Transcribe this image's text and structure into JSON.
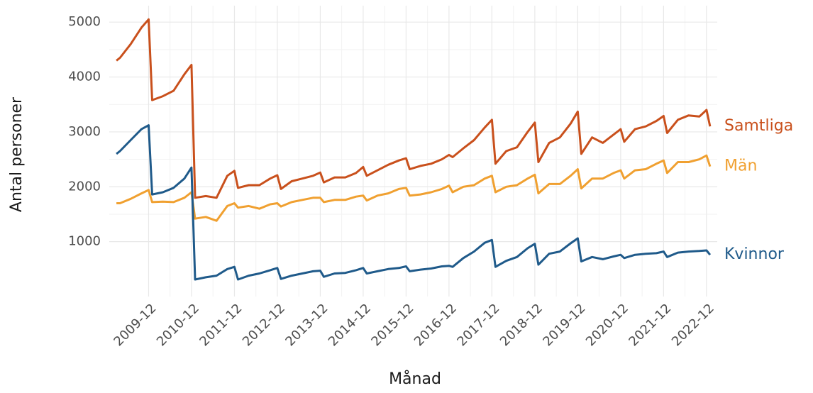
{
  "chart_data": {
    "type": "line",
    "x_label": "Månad",
    "y_label": "Antal personer",
    "x": [
      "2009-03",
      "2009-04",
      "2009-07",
      "2009-10",
      "2009-12",
      "2010-01",
      "2010-04",
      "2010-07",
      "2010-10",
      "2010-12",
      "2011-01",
      "2011-04",
      "2011-07",
      "2011-10",
      "2011-12",
      "2012-01",
      "2012-04",
      "2012-07",
      "2012-10",
      "2012-12",
      "2013-01",
      "2013-04",
      "2013-07",
      "2013-10",
      "2013-12",
      "2014-01",
      "2014-04",
      "2014-07",
      "2014-10",
      "2014-12",
      "2015-01",
      "2015-04",
      "2015-07",
      "2015-10",
      "2015-12",
      "2016-01",
      "2016-04",
      "2016-07",
      "2016-10",
      "2016-12",
      "2017-01",
      "2017-04",
      "2017-07",
      "2017-10",
      "2017-12",
      "2018-01",
      "2018-04",
      "2018-07",
      "2018-10",
      "2018-12",
      "2019-01",
      "2019-04",
      "2019-07",
      "2019-10",
      "2019-12",
      "2020-01",
      "2020-04",
      "2020-07",
      "2020-10",
      "2020-12",
      "2021-01",
      "2021-04",
      "2021-07",
      "2021-10",
      "2021-12",
      "2022-01",
      "2022-04",
      "2022-07",
      "2022-10",
      "2022-12",
      "2023-01"
    ],
    "series": [
      {
        "name": "Samtliga",
        "color": "#c9501c",
        "values": [
          4300,
          4350,
          4600,
          4900,
          5050,
          3580,
          3650,
          3750,
          4050,
          4220,
          1800,
          1830,
          1800,
          2200,
          2290,
          1980,
          2030,
          2030,
          2150,
          2210,
          1960,
          2100,
          2150,
          2200,
          2260,
          2080,
          2170,
          2170,
          2250,
          2360,
          2200,
          2300,
          2400,
          2480,
          2520,
          2320,
          2380,
          2420,
          2500,
          2580,
          2540,
          2700,
          2850,
          3080,
          3220,
          2420,
          2650,
          2720,
          3000,
          3170,
          2450,
          2800,
          2900,
          3150,
          3370,
          2600,
          2900,
          2800,
          2950,
          3050,
          2820,
          3050,
          3100,
          3200,
          3290,
          2980,
          3220,
          3300,
          3280,
          3400,
          3100
        ]
      },
      {
        "name": "Män",
        "color": "#f0a030",
        "values": [
          1700,
          1700,
          1780,
          1880,
          1940,
          1720,
          1730,
          1720,
          1800,
          1900,
          1420,
          1450,
          1380,
          1650,
          1700,
          1620,
          1650,
          1600,
          1680,
          1700,
          1640,
          1720,
          1760,
          1800,
          1800,
          1720,
          1760,
          1760,
          1820,
          1840,
          1750,
          1840,
          1880,
          1960,
          1980,
          1840,
          1860,
          1900,
          1960,
          2020,
          1900,
          2000,
          2030,
          2150,
          2200,
          1900,
          2000,
          2030,
          2150,
          2220,
          1880,
          2050,
          2050,
          2200,
          2320,
          1970,
          2150,
          2150,
          2250,
          2300,
          2150,
          2300,
          2320,
          2420,
          2480,
          2250,
          2450,
          2450,
          2500,
          2570,
          2370
        ]
      },
      {
        "name": "Kvinnor",
        "color": "#1f5a8a",
        "values": [
          2600,
          2650,
          2850,
          3050,
          3120,
          1860,
          1900,
          1980,
          2150,
          2350,
          310,
          350,
          380,
          500,
          540,
          310,
          380,
          420,
          480,
          520,
          320,
          380,
          420,
          460,
          470,
          360,
          420,
          430,
          480,
          520,
          420,
          460,
          500,
          520,
          550,
          460,
          490,
          510,
          550,
          560,
          540,
          700,
          820,
          980,
          1030,
          540,
          650,
          720,
          880,
          960,
          580,
          780,
          820,
          970,
          1060,
          640,
          720,
          680,
          730,
          760,
          700,
          760,
          780,
          790,
          820,
          720,
          800,
          820,
          830,
          840,
          760
        ]
      }
    ],
    "xlim": [
      "2009-01",
      "2023-03"
    ],
    "xticks": [
      "2009-12",
      "2010-12",
      "2011-12",
      "2012-12",
      "2013-12",
      "2014-12",
      "2015-12",
      "2016-12",
      "2017-12",
      "2018-12",
      "2019-12",
      "2020-12",
      "2021-12",
      "2022-12"
    ],
    "ylim": [
      0,
      5300
    ],
    "yticks": [
      1000,
      2000,
      3000,
      4000,
      5000
    ],
    "grid": true
  }
}
